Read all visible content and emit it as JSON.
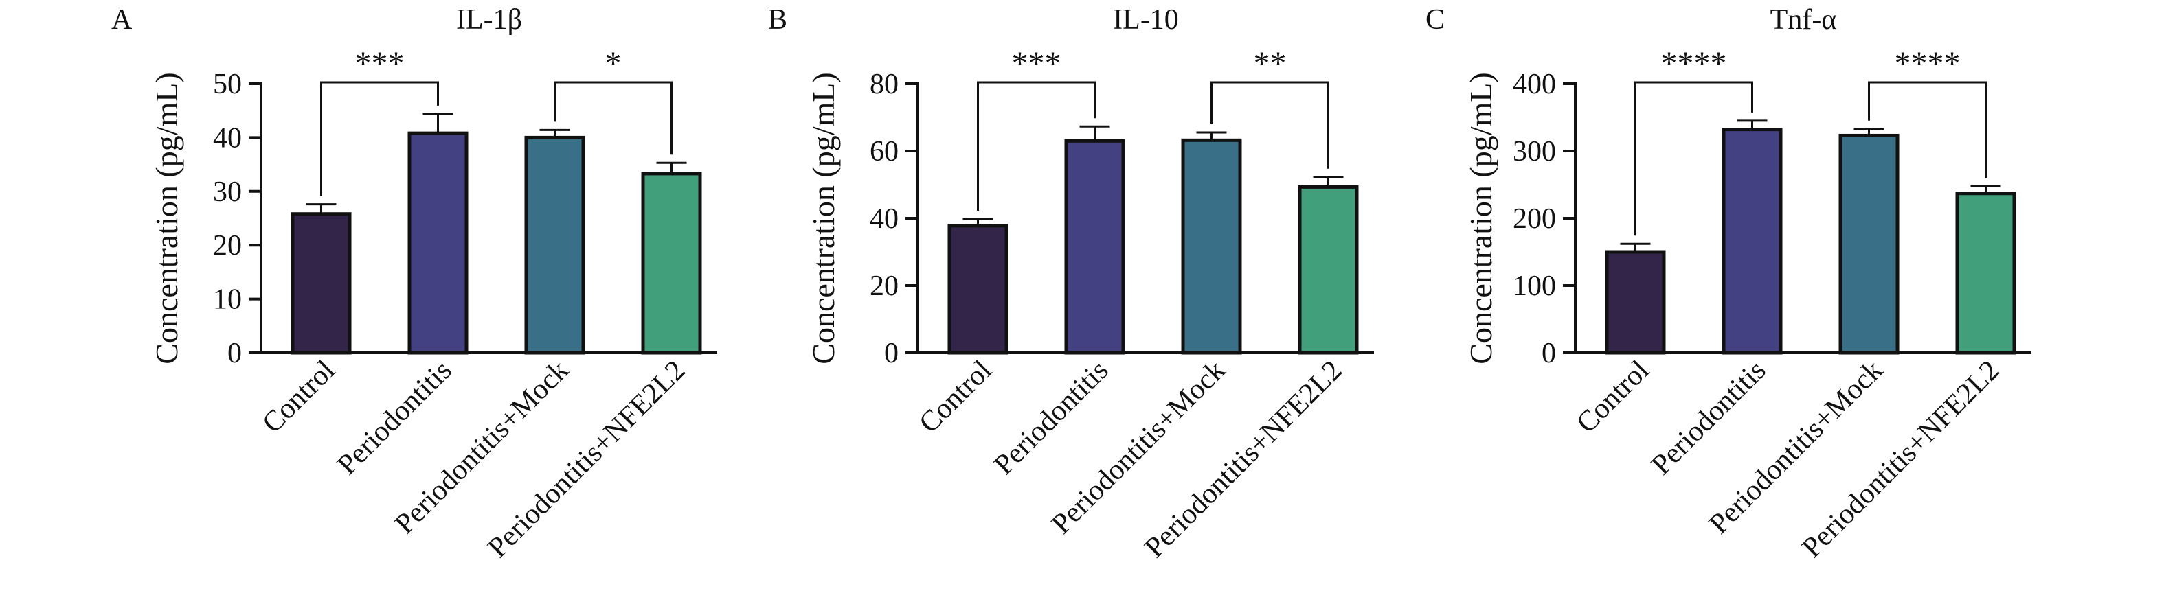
{
  "chart_data": [
    {
      "type": "bar",
      "panel_label": "A",
      "title": "IL-1β",
      "ylabel": "Concentration (pg/mL)",
      "ylim": [
        0,
        50
      ],
      "yticks": [
        0,
        10,
        20,
        30,
        40,
        50
      ],
      "categories": [
        "Control",
        "Periodontitis",
        "Periodontitis+Mock",
        "Periodontitis+NFE2L2"
      ],
      "values": [
        25.8,
        40.8,
        40.0,
        33.3
      ],
      "errors": [
        1.8,
        3.6,
        1.4,
        2.0
      ],
      "colors": [
        "#33254a",
        "#434182",
        "#3a7087",
        "#41a07b"
      ],
      "significance": [
        {
          "from": 0,
          "to": 1,
          "label": "***"
        },
        {
          "from": 2,
          "to": 3,
          "label": "*"
        }
      ]
    },
    {
      "type": "bar",
      "panel_label": "B",
      "title": "IL-10",
      "ylabel": "Concentration (pg/mL)",
      "ylim": [
        0,
        80
      ],
      "yticks": [
        0,
        20,
        40,
        60,
        80
      ],
      "categories": [
        "Control",
        "Periodontitis",
        "Periodontitis+Mock",
        "Periodontitis+NFE2L2"
      ],
      "values": [
        37.8,
        63.0,
        63.2,
        49.3
      ],
      "errors": [
        2.0,
        4.3,
        2.3,
        3.0
      ],
      "colors": [
        "#33254a",
        "#434182",
        "#3a7087",
        "#41a07b"
      ],
      "significance": [
        {
          "from": 0,
          "to": 1,
          "label": "***"
        },
        {
          "from": 2,
          "to": 3,
          "label": "**"
        }
      ]
    },
    {
      "type": "bar",
      "panel_label": "C",
      "title": "Tnf-α",
      "ylabel": "Concentration (pg/mL)",
      "ylim": [
        0,
        400
      ],
      "yticks": [
        0,
        100,
        200,
        300,
        400
      ],
      "categories": [
        "Control",
        "Periodontitis",
        "Periodontitis+Mock",
        "Periodontitis+NFE2L2"
      ],
      "values": [
        150,
        332,
        323,
        237
      ],
      "errors": [
        12,
        13,
        10,
        11
      ],
      "colors": [
        "#33254a",
        "#434182",
        "#3a7087",
        "#41a07b"
      ],
      "significance": [
        {
          "from": 0,
          "to": 1,
          "label": "****"
        },
        {
          "from": 2,
          "to": 3,
          "label": "****"
        }
      ]
    }
  ]
}
